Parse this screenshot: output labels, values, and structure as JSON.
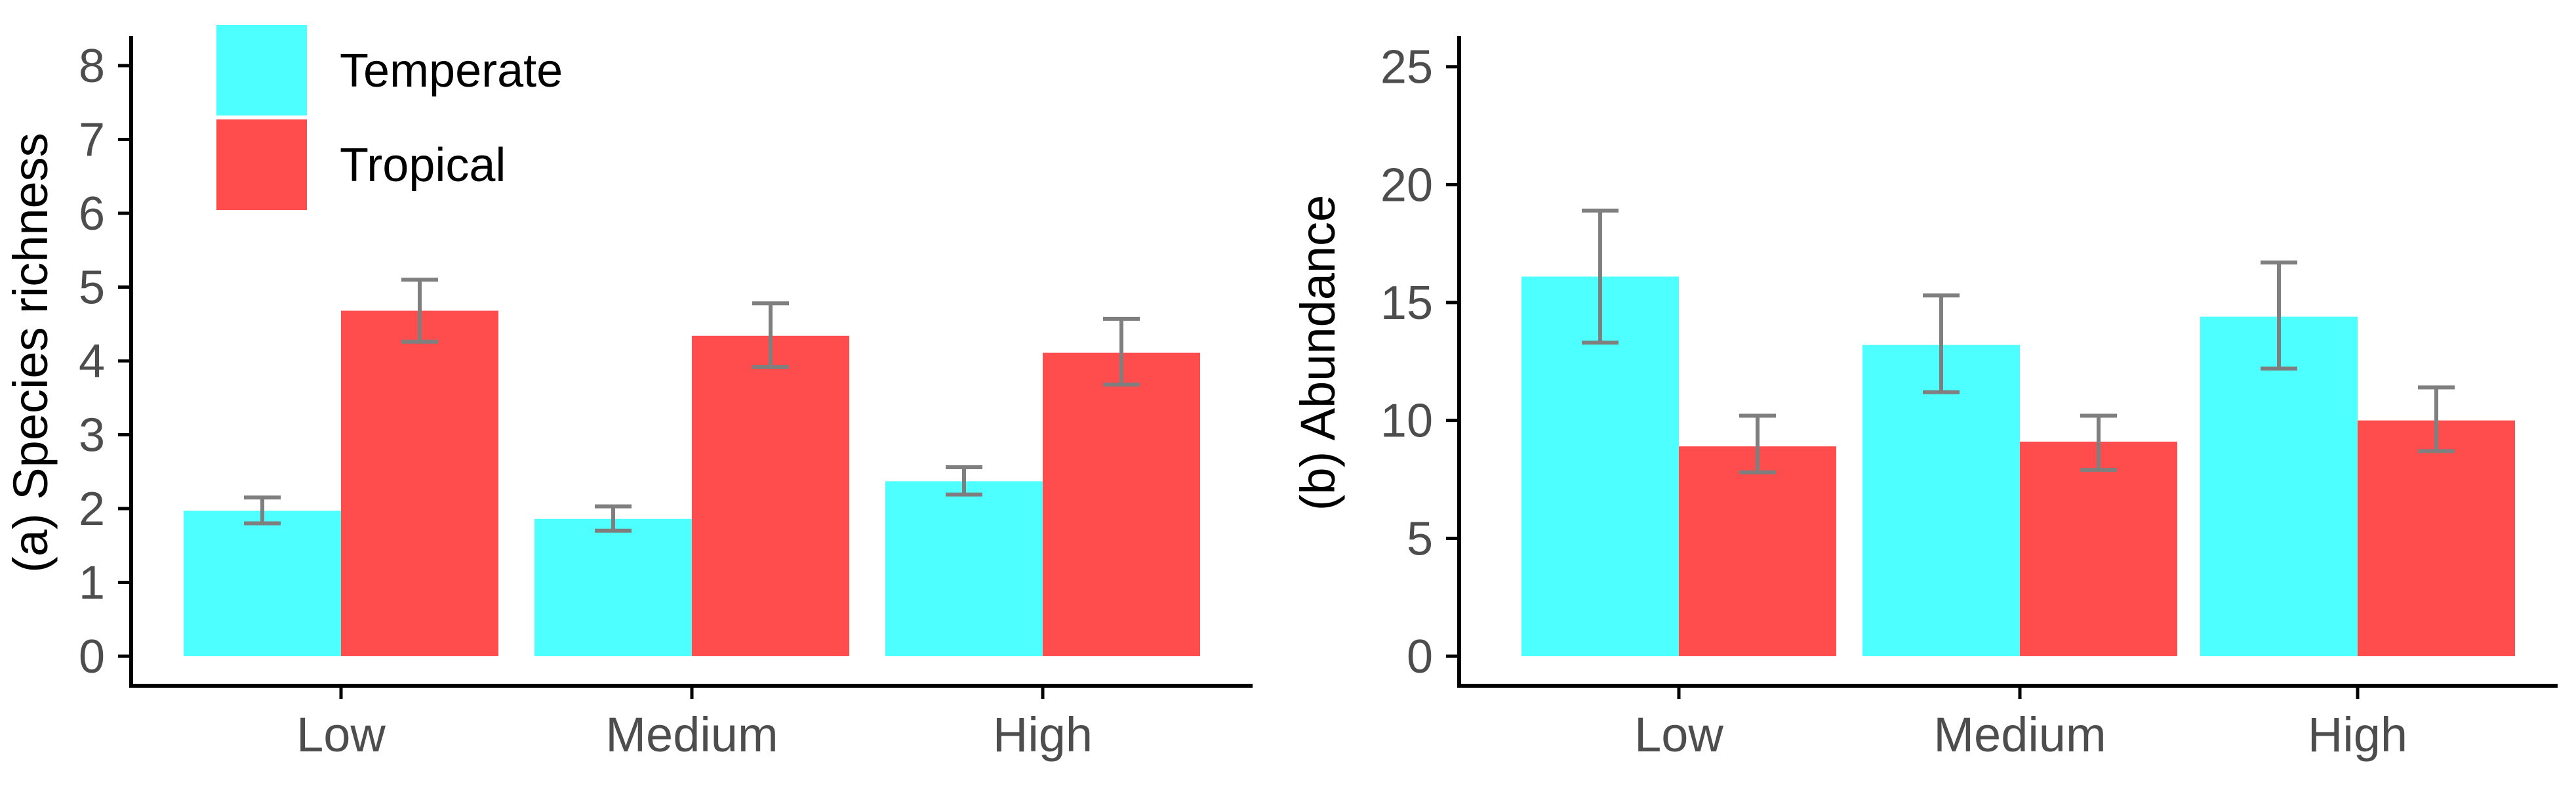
{
  "chart_data": [
    {
      "type": "bar",
      "id": "a",
      "title": "",
      "xlabel": "",
      "ylabel": "(a) Species richness",
      "categories": [
        "Low",
        "Medium",
        "High"
      ],
      "ylim": [
        0,
        8.4
      ],
      "yticks": [
        0,
        1,
        2,
        3,
        4,
        5,
        6,
        7,
        8
      ],
      "grid": false,
      "series": [
        {
          "name": "Temperate",
          "color": "#4dffff",
          "values": [
            1.97,
            1.86,
            2.37
          ],
          "err_low": [
            1.8,
            1.7,
            2.19
          ],
          "err_high": [
            2.15,
            2.03,
            2.56
          ]
        },
        {
          "name": "Tropical",
          "color": "#ff4d4d",
          "values": [
            4.68,
            4.34,
            4.11
          ],
          "err_low": [
            4.26,
            3.92,
            3.68
          ],
          "err_high": [
            5.1,
            4.78,
            4.57
          ]
        }
      ],
      "legend": {
        "placement": "top-left",
        "entries": [
          "Temperate",
          "Tropical"
        ]
      }
    },
    {
      "type": "bar",
      "id": "b",
      "title": "",
      "xlabel": "",
      "ylabel": "(b) Abundance",
      "categories": [
        "Low",
        "Medium",
        "High"
      ],
      "ylim": [
        0,
        26.3
      ],
      "yticks": [
        0,
        5,
        10,
        15,
        20,
        25
      ],
      "grid": false,
      "series": [
        {
          "name": "Temperate",
          "color": "#4dffff",
          "values": [
            16.1,
            13.2,
            14.4
          ],
          "err_low": [
            13.3,
            11.2,
            12.2
          ],
          "err_high": [
            18.9,
            15.3,
            16.7
          ]
        },
        {
          "name": "Tropical",
          "color": "#ff4d4d",
          "values": [
            8.9,
            9.1,
            10.0
          ],
          "err_low": [
            7.8,
            7.9,
            8.7
          ],
          "err_high": [
            10.2,
            10.2,
            11.4
          ]
        }
      ]
    }
  ]
}
